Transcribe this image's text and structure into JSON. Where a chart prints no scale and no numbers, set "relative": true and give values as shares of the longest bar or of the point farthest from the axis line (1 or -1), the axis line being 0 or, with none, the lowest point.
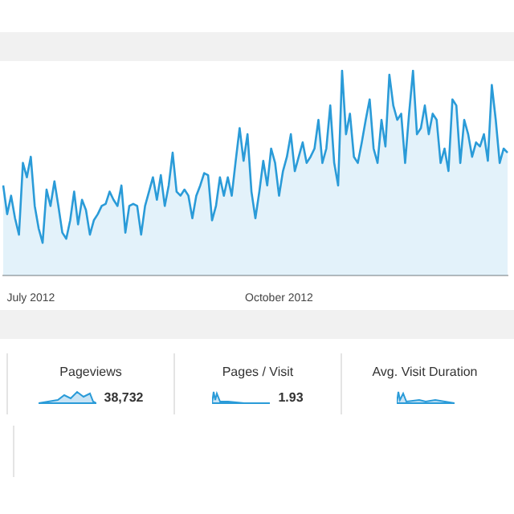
{
  "chart_data": [
    {
      "type": "area",
      "relative": true,
      "legend": false,
      "categories": [
        null,
        null,
        null,
        null,
        null,
        null,
        null,
        "July 2012",
        null,
        null,
        null,
        null,
        null,
        null,
        null,
        null,
        null,
        null,
        null,
        null,
        null,
        null,
        null,
        null,
        null,
        null,
        null,
        null,
        null,
        null,
        null,
        null,
        null,
        null,
        null,
        null,
        null,
        null,
        null,
        null,
        null,
        null,
        null,
        null,
        null,
        null,
        null,
        null,
        null,
        null,
        null,
        null,
        null,
        null,
        null,
        null,
        null,
        null,
        null,
        null,
        null,
        null,
        null,
        null,
        null,
        null,
        null,
        null,
        null,
        null,
        "October 2012",
        null,
        null,
        null,
        null,
        null,
        null,
        null,
        null,
        null,
        null,
        null,
        null,
        null,
        null,
        null,
        null,
        null,
        null,
        null,
        null,
        null,
        null,
        null,
        null,
        null,
        null,
        null,
        null,
        null,
        null,
        null,
        null,
        null,
        null,
        null,
        null,
        null,
        null,
        null,
        null,
        null,
        null,
        null,
        null,
        null,
        null,
        null,
        null,
        null,
        null,
        null,
        null,
        null,
        null,
        null,
        null,
        null,
        null
      ],
      "series": [
        {
          "color": "#2a9bd8",
          "values": [
            0.44,
            0.3,
            0.39,
            0.28,
            0.2,
            0.55,
            0.48,
            0.58,
            0.34,
            0.23,
            0.16,
            0.42,
            0.34,
            0.46,
            0.34,
            0.21,
            0.18,
            0.27,
            0.41,
            0.25,
            0.37,
            0.32,
            0.2,
            0.27,
            0.3,
            0.34,
            0.35,
            0.41,
            0.37,
            0.34,
            0.44,
            0.21,
            0.34,
            0.35,
            0.34,
            0.2,
            0.34,
            0.41,
            0.48,
            0.37,
            0.49,
            0.34,
            0.44,
            0.6,
            0.41,
            0.39,
            0.42,
            0.39,
            0.28,
            0.39,
            0.44,
            0.5,
            0.49,
            0.27,
            0.34,
            0.48,
            0.39,
            0.48,
            0.39,
            0.56,
            0.72,
            0.56,
            0.69,
            0.41,
            0.28,
            0.41,
            0.56,
            0.44,
            0.62,
            0.55,
            0.39,
            0.51,
            0.58,
            0.69,
            0.51,
            0.58,
            0.65,
            0.55,
            0.58,
            0.62,
            0.76,
            0.55,
            0.62,
            0.83,
            0.55,
            0.44,
            1.0,
            0.69,
            0.79,
            0.58,
            0.55,
            0.65,
            0.76,
            0.86,
            0.62,
            0.55,
            0.76,
            0.63,
            0.98,
            0.83,
            0.76,
            0.79,
            0.55,
            0.79,
            1.0,
            0.69,
            0.72,
            0.83,
            0.69,
            0.79,
            0.76,
            0.55,
            0.62,
            0.51,
            0.86,
            0.83,
            0.55,
            0.76,
            0.69,
            0.58,
            0.65,
            0.63,
            0.69,
            0.56,
            0.93,
            0.76,
            0.55,
            0.62,
            0.6
          ]
        }
      ]
    },
    {
      "type": "other",
      "annotations": [
        "Pageviews",
        "38,732",
        "Pages / Visit",
        "1.93",
        "Avg. Visit Duration"
      ]
    }
  ]
}
